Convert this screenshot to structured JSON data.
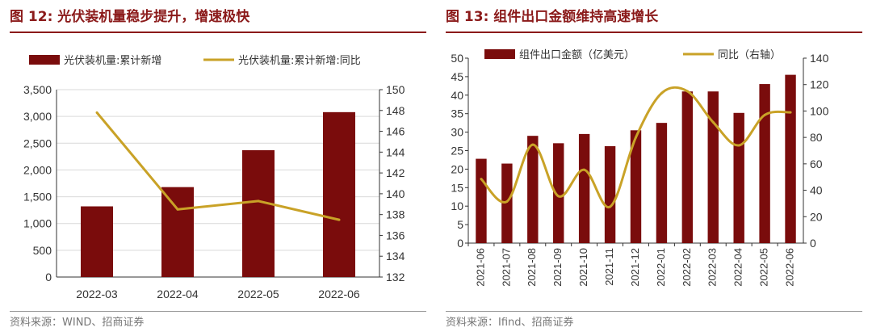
{
  "figures": [
    {
      "title": "图 12:  光伏装机量稳步提升，增速极快",
      "source": "资料来源：WIND、招商证券"
    },
    {
      "title": "图 13:  组件出口金额维持高速增长",
      "source": "资料来源：Ifind、招商证券"
    }
  ],
  "colors": {
    "bar": "#7a0c0c",
    "line": "#c9a227",
    "grid": "#d9d9d9",
    "title": "#8b1a1a"
  },
  "chart_data": [
    {
      "type": "bar",
      "title": "图 12:  光伏装机量稳步提升，增速极快",
      "categories": [
        "2022-03",
        "2022-04",
        "2022-05",
        "2022-06"
      ],
      "series": [
        {
          "name": "光伏装机量:累计新增",
          "type": "bar",
          "axis": "left",
          "values": [
            1320,
            1680,
            2370,
            3080
          ]
        },
        {
          "name": "光伏装机量:累计新增:同比",
          "type": "line",
          "axis": "right",
          "values": [
            147.8,
            138.5,
            139.3,
            137.5
          ]
        }
      ],
      "ylim": [
        0,
        3500
      ],
      "yticks": [
        0,
        500,
        1000,
        1500,
        2000,
        2500,
        3000,
        3500
      ],
      "ytick_labels": [
        "0",
        "500",
        "1,000",
        "1,500",
        "2,000",
        "2,500",
        "3,000",
        "3,500"
      ],
      "y2lim": [
        132,
        150
      ],
      "y2ticks": [
        132,
        134,
        136,
        138,
        140,
        142,
        144,
        146,
        148,
        150
      ],
      "grid": true,
      "legend": "top"
    },
    {
      "type": "bar",
      "title": "图 13:  组件出口金额维持高速增长",
      "categories": [
        "2021-06",
        "2021-07",
        "2021-08",
        "2021-09",
        "2021-10",
        "2021-11",
        "2021-12",
        "2022-01",
        "2022-02",
        "2022-03",
        "2022-04",
        "2022-05",
        "2022-06"
      ],
      "series": [
        {
          "name": "组件出口金额（亿美元）",
          "type": "bar",
          "axis": "left",
          "values": [
            22.8,
            21.5,
            29,
            27,
            29.5,
            26.2,
            30.5,
            32.5,
            41,
            41,
            35.2,
            43,
            45.5
          ]
        },
        {
          "name": "同比（右轴）",
          "type": "line",
          "axis": "right",
          "values": [
            48.5,
            31.5,
            74.5,
            35.5,
            55.5,
            27.5,
            80,
            113.5,
            115,
            91.5,
            74,
            97,
            99
          ]
        }
      ],
      "ylim": [
        0,
        50
      ],
      "yticks": [
        0,
        5,
        10,
        15,
        20,
        25,
        30,
        35,
        40,
        45,
        50
      ],
      "y2lim": [
        0,
        140
      ],
      "y2ticks": [
        0,
        20,
        40,
        60,
        80,
        100,
        120,
        140
      ],
      "grid": false,
      "legend": "top"
    }
  ]
}
